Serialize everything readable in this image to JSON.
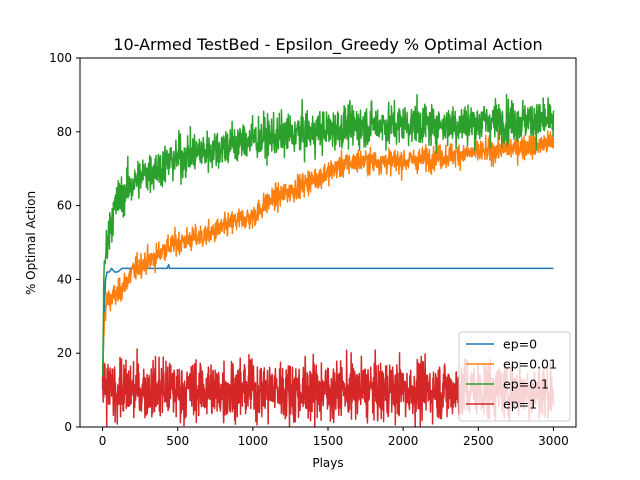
{
  "chart_data": {
    "type": "line",
    "title": "10-Armed TestBed - Epsilon_Greedy % Optimal Action",
    "xlabel": "Plays",
    "ylabel": "% Optimal Action",
    "xlim": [
      -150,
      3150
    ],
    "ylim": [
      0,
      100
    ],
    "xticks": [
      0,
      500,
      1000,
      1500,
      2000,
      2500,
      3000
    ],
    "yticks": [
      0,
      20,
      40,
      60,
      80,
      100
    ],
    "grid": false,
    "legend_position": "lower-right",
    "series": [
      {
        "name": "ep=0",
        "color": "#1f77b4",
        "noise": 0,
        "x": [
          0,
          10,
          20,
          30,
          45,
          60,
          80,
          100,
          130,
          170,
          200,
          300,
          400,
          430,
          440,
          445,
          460,
          600,
          1000,
          1500,
          2000,
          2500,
          3000
        ],
        "y": [
          10,
          30,
          40,
          42,
          42,
          43,
          42,
          42,
          43,
          43,
          43,
          43,
          43,
          43,
          44,
          43,
          43,
          43,
          43,
          43,
          43,
          43,
          43
        ]
      },
      {
        "name": "ep=0.01",
        "color": "#ff7f0e",
        "noise": 1.6,
        "x": [
          0,
          5,
          15,
          30,
          60,
          100,
          150,
          200,
          250,
          300,
          350,
          400,
          500,
          600,
          700,
          800,
          900,
          1000,
          1050,
          1100,
          1200,
          1300,
          1400,
          1500,
          1600,
          1700,
          1800,
          2000,
          2200,
          2400,
          2600,
          2800,
          3000
        ],
        "y": [
          10,
          22,
          31,
          34,
          35,
          36,
          39,
          42,
          44,
          45,
          46,
          48,
          50,
          51,
          52,
          54,
          56,
          57,
          59,
          61,
          63,
          65,
          67,
          69,
          71,
          72,
          72,
          72,
          73,
          74,
          75,
          76,
          77
        ]
      },
      {
        "name": "ep=0.1",
        "color": "#2ca02c",
        "noise": 2.8,
        "x": [
          0,
          5,
          10,
          20,
          30,
          50,
          75,
          100,
          150,
          200,
          300,
          400,
          500,
          600,
          700,
          800,
          1000,
          1200,
          1400,
          1600,
          1800,
          2000,
          2200,
          2400,
          2600,
          2800,
          3000
        ],
        "y": [
          12,
          30,
          40,
          47,
          50,
          55,
          58,
          61,
          64,
          66,
          69,
          71,
          73,
          74,
          75,
          76,
          78,
          79,
          80,
          81,
          82,
          82,
          82,
          82,
          83,
          83,
          83
        ]
      },
      {
        "name": "ep=1",
        "color": "#d62728",
        "noise": 4,
        "x": [
          0,
          3000
        ],
        "y": [
          10,
          10
        ]
      }
    ]
  }
}
